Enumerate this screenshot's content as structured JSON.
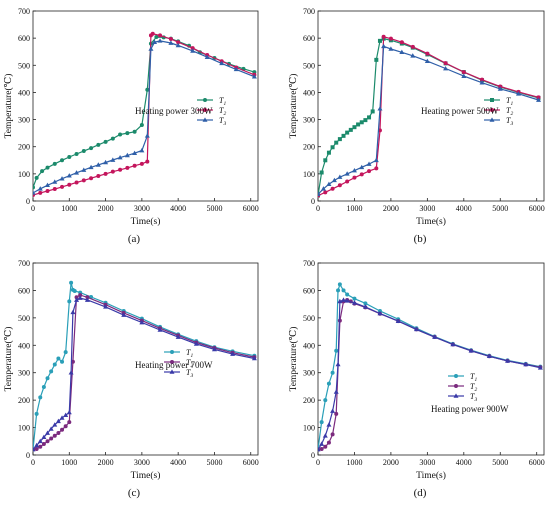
{
  "panels": [
    {
      "caption": "(a)",
      "annotation": "Heating power 300W",
      "chart_data": {
        "type": "line",
        "xlabel": "Time(s)",
        "ylabel": "Temperature(℃)",
        "xlim": [
          0,
          6200
        ],
        "ylim": [
          0,
          700
        ],
        "xticks": [
          0,
          1000,
          2000,
          3000,
          4000,
          5000,
          6000
        ],
        "yticks": [
          0,
          100,
          200,
          300,
          400,
          500,
          600,
          700
        ],
        "legend": "right-center",
        "series": [
          {
            "name": "T1",
            "color": "#1b8a6b",
            "marker": "circle",
            "x": [
              0,
              100,
              250,
              400,
              600,
              800,
              1000,
              1200,
              1400,
              1600,
              1800,
              2000,
              2200,
              2400,
              2600,
              2800,
              3000,
              3150,
              3250,
              3400,
              3600,
              3800,
              4000,
              4300,
              4600,
              5000,
              5400,
              5800,
              6100
            ],
            "y": [
              50,
              85,
              110,
              123,
              137,
              150,
              162,
              173,
              184,
              195,
              207,
              218,
              230,
              245,
              250,
              255,
              280,
              410,
              580,
              604,
              603,
              598,
              588,
              572,
              548,
              527,
              505,
              487,
              475
            ]
          },
          {
            "name": "T2",
            "color": "#c4155c",
            "marker": "circle",
            "x": [
              0,
              200,
              400,
              600,
              800,
              1000,
              1200,
              1400,
              1600,
              1800,
              2000,
              2200,
              2400,
              2600,
              2800,
              3000,
              3150,
              3250,
              3300,
              3500,
              3800,
              4000,
              4400,
              4800,
              5200,
              5600,
              6100
            ],
            "y": [
              22,
              30,
              37,
              44,
              52,
              60,
              68,
              76,
              84,
              92,
              100,
              108,
              115,
              122,
              130,
              137,
              145,
              610,
              616,
              610,
              597,
              585,
              563,
              538,
              515,
              492,
              465
            ]
          },
          {
            "name": "T3",
            "color": "#2f5fa8",
            "marker": "triangle",
            "x": [
              0,
              200,
              400,
              600,
              800,
              1000,
              1200,
              1400,
              1600,
              1800,
              2000,
              2200,
              2400,
              2600,
              2800,
              3000,
              3150,
              3250,
              3350,
              3500,
              3800,
              4000,
              4400,
              4800,
              5200,
              5600,
              6100
            ],
            "y": [
              30,
              45,
              58,
              70,
              82,
              93,
              104,
              114,
              124,
              133,
              142,
              151,
              160,
              168,
              176,
              186,
              240,
              560,
              585,
              590,
              582,
              573,
              553,
              530,
              507,
              485,
              458
            ]
          }
        ]
      }
    },
    {
      "caption": "(b)",
      "annotation": "Heating power 500W",
      "chart_data": {
        "type": "line",
        "xlabel": "Time(s)",
        "ylabel": "Temperature(℃)",
        "xlim": [
          0,
          6200
        ],
        "ylim": [
          0,
          700
        ],
        "xticks": [
          0,
          1000,
          2000,
          3000,
          4000,
          5000,
          6000
        ],
        "yticks": [
          0,
          100,
          200,
          300,
          400,
          500,
          600,
          700
        ],
        "legend": "right-center",
        "series": [
          {
            "name": "T1",
            "color": "#1b8a6b",
            "marker": "square",
            "x": [
              0,
              100,
              200,
              300,
              400,
              500,
              600,
              700,
              800,
              900,
              1000,
              1100,
              1200,
              1300,
              1400,
              1500,
              1600,
              1700,
              1800,
              2000,
              2300,
              2600,
              3000,
              3500,
              4000,
              4500,
              5000,
              5500,
              6050
            ],
            "y": [
              20,
              105,
              150,
              178,
              198,
              215,
              228,
              240,
              252,
              262,
              272,
              282,
              290,
              298,
              308,
              330,
              520,
              590,
              598,
              592,
              580,
              565,
              540,
              507,
              475,
              445,
              420,
              400,
              380
            ]
          },
          {
            "name": "T2",
            "color": "#c4155c",
            "marker": "circle",
            "x": [
              0,
              200,
              400,
              600,
              800,
              1000,
              1200,
              1400,
              1600,
              1700,
              1800,
              2000,
              2300,
              2600,
              3000,
              3500,
              4000,
              4500,
              5000,
              5500,
              6050
            ],
            "y": [
              20,
              32,
              45,
              58,
              72,
              86,
              98,
              110,
              120,
              260,
              605,
              598,
              585,
              568,
              543,
              508,
              475,
              447,
              422,
              402,
              382
            ]
          },
          {
            "name": "T3",
            "color": "#2f5fa8",
            "marker": "triangle",
            "x": [
              0,
              150,
              300,
              450,
              600,
              800,
              1000,
              1200,
              1400,
              1600,
              1700,
              1800,
              2000,
              2300,
              2600,
              3000,
              3500,
              4000,
              4500,
              5000,
              5500,
              6050
            ],
            "y": [
              25,
              45,
              62,
              76,
              88,
              100,
              112,
              124,
              136,
              150,
              340,
              570,
              560,
              548,
              535,
              515,
              488,
              460,
              436,
              413,
              395,
              372
            ]
          }
        ]
      }
    },
    {
      "caption": "(c)",
      "annotation": "Heating power 700W",
      "chart_data": {
        "type": "line",
        "xlabel": "Time(s)",
        "ylabel": "Temperature(℃)",
        "xlim": [
          0,
          6200
        ],
        "ylim": [
          0,
          700
        ],
        "xticks": [
          0,
          1000,
          2000,
          3000,
          4000,
          5000,
          6000
        ],
        "yticks": [
          0,
          100,
          200,
          300,
          400,
          500,
          600,
          700
        ],
        "legend": "right-center",
        "series": [
          {
            "name": "T1",
            "color": "#2a9fb8",
            "marker": "circle",
            "x": [
              0,
              100,
              200,
              300,
              400,
              500,
              600,
              700,
              800,
              900,
              1000,
              1050,
              1100,
              1150,
              1300,
              1600,
              2000,
              2500,
              3000,
              3500,
              4000,
              4500,
              5000,
              5500,
              6100
            ],
            "y": [
              20,
              150,
              210,
              248,
              280,
              305,
              330,
              352,
              340,
              375,
              560,
              628,
              602,
              598,
              592,
              576,
              555,
              525,
              497,
              467,
              440,
              415,
              393,
              378,
              362
            ]
          },
          {
            "name": "T2",
            "color": "#7b2a7e",
            "marker": "circle",
            "x": [
              0,
              100,
              200,
              300,
              400,
              500,
              600,
              700,
              800,
              900,
              1000,
              1100,
              1200,
              1300,
              1500,
              2000,
              2500,
              3000,
              3500,
              4000,
              4500,
              5000,
              5500,
              6100
            ],
            "y": [
              20,
              22,
              30,
              40,
              50,
              60,
              70,
              80,
              92,
              105,
              120,
              340,
              575,
              583,
              575,
              548,
              518,
              490,
              462,
              436,
              410,
              390,
              373,
              357
            ]
          },
          {
            "name": "T3",
            "color": "#3a3aa8",
            "marker": "triangle",
            "x": [
              0,
              100,
              200,
              300,
              400,
              500,
              600,
              700,
              800,
              900,
              1000,
              1050,
              1100,
              1200,
              1300,
              1500,
              2000,
              2500,
              3000,
              3500,
              4000,
              4500,
              5000,
              5500,
              6100
            ],
            "y": [
              20,
              35,
              50,
              65,
              80,
              95,
              110,
              123,
              135,
              145,
              155,
              300,
              520,
              565,
              572,
              565,
              540,
              510,
              483,
              456,
              430,
              405,
              385,
              368,
              352
            ]
          }
        ]
      }
    },
    {
      "caption": "(d)",
      "annotation": "Heating power 900W",
      "chart_data": {
        "type": "line",
        "xlabel": "Time(s)",
        "ylabel": "Temperature(℃)",
        "xlim": [
          0,
          6200
        ],
        "ylim": [
          0,
          700
        ],
        "xticks": [
          0,
          1000,
          2000,
          3000,
          4000,
          5000,
          6000
        ],
        "yticks": [
          0,
          100,
          200,
          300,
          400,
          500,
          600,
          700
        ],
        "legend": "right-center",
        "series": [
          {
            "name": "T1",
            "color": "#2a9fb8",
            "marker": "circle",
            "x": [
              0,
              100,
              200,
              300,
              400,
              500,
              550,
              600,
              700,
              800,
              1000,
              1300,
              1700,
              2200,
              2700,
              3200,
              3700,
              4200,
              4700,
              5200,
              5700,
              6100
            ],
            "y": [
              20,
              120,
              200,
              260,
              300,
              380,
              600,
              622,
              600,
              585,
              570,
              553,
              525,
              495,
              462,
              432,
              405,
              382,
              362,
              345,
              332,
              322
            ]
          },
          {
            "name": "T2",
            "color": "#7b2a7e",
            "marker": "circle",
            "x": [
              0,
              100,
              200,
              300,
              400,
              500,
              600,
              700,
              800,
              900,
              1000,
              1300,
              1700,
              2200,
              2700,
              3200,
              3700,
              4200,
              4700,
              5200,
              5700,
              6100
            ],
            "y": [
              20,
              22,
              30,
              45,
              75,
              150,
              490,
              560,
              565,
              560,
              552,
              538,
              515,
              488,
              458,
              430,
              403,
              380,
              360,
              343,
              330,
              320
            ]
          },
          {
            "name": "T3",
            "color": "#3a3aa8",
            "marker": "triangle",
            "x": [
              0,
              100,
              200,
              300,
              400,
              500,
              550,
              600,
              700,
              800,
              1000,
              1300,
              1700,
              2200,
              2700,
              3200,
              3700,
              4200,
              4700,
              5200,
              5700,
              6100
            ],
            "y": [
              20,
              40,
              70,
              110,
              160,
              230,
              330,
              560,
              565,
              562,
              555,
              540,
              516,
              488,
              458,
              430,
              403,
              380,
              360,
              343,
              330,
              318
            ]
          }
        ]
      }
    }
  ]
}
